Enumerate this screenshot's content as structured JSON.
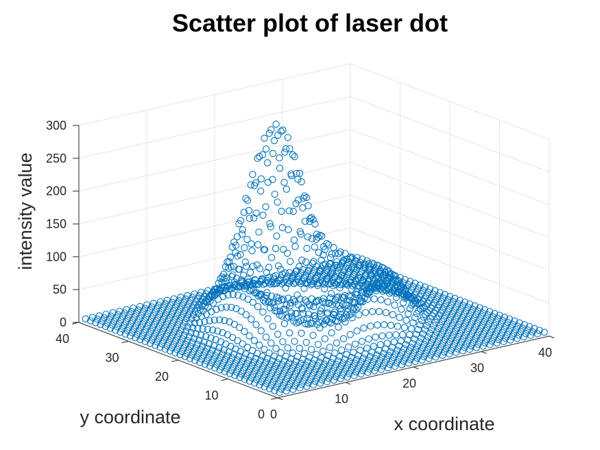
{
  "chart_data": {
    "type": "scatter",
    "title": "Scatter plot of laser dot",
    "xlabel": "x coordinate",
    "ylabel": "y coordinate",
    "zlabel": "intensity value",
    "xlim": [
      0,
      40
    ],
    "ylim": [
      0,
      40
    ],
    "zlim": [
      0,
      300
    ],
    "xticks": [
      "0",
      "10",
      "20",
      "30",
      "40"
    ],
    "yticks": [
      "0",
      "10",
      "20",
      "30",
      "40"
    ],
    "zticks": [
      "0",
      "50",
      "100",
      "150",
      "200",
      "250",
      "300"
    ],
    "grid": true,
    "marker": "open-circle",
    "marker_color": "#0072bd",
    "grid_points": {
      "x_start": 1,
      "x_end": 40,
      "y_start": 1,
      "y_end": 40,
      "step": 1
    },
    "background_value": 3,
    "ring": {
      "center_x": 21,
      "center_y": 22,
      "radius": 9,
      "width": 3.2,
      "peak_value": 68
    },
    "peak": {
      "center_x": 21,
      "center_y": 28,
      "sigma_x": 3,
      "sigma_y": 3.5,
      "peak_value": 245
    }
  }
}
